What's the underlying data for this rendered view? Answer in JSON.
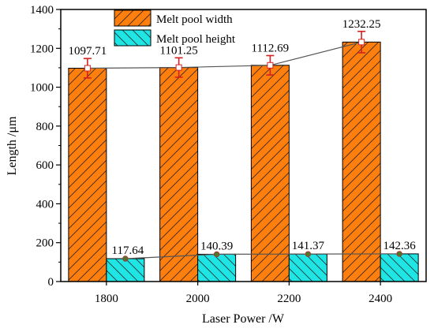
{
  "chart_data": {
    "type": "bar",
    "title": "",
    "xlabel": "Laser Power /W",
    "ylabel": "Length /μm",
    "categories": [
      "1800",
      "2000",
      "2200",
      "2400"
    ],
    "ylim": [
      0,
      1400
    ],
    "yticks": [
      0,
      200,
      400,
      600,
      800,
      1000,
      1200,
      1400
    ],
    "grid": false,
    "legend_position": "top-center",
    "series": [
      {
        "name": "Melt pool width",
        "values": [
          1097.71,
          1101.25,
          1112.69,
          1232.25
        ],
        "labels": [
          "1097.71",
          "1101.25",
          "1112.69",
          "1232.25"
        ],
        "error": [
          50,
          50,
          50,
          55
        ],
        "color": "#FF7F0E",
        "hatch": "diagonal-forward",
        "trend_line": true
      },
      {
        "name": "Melt pool height",
        "values": [
          117.64,
          140.39,
          141.37,
          142.36
        ],
        "labels": [
          "117.64",
          "140.39",
          "141.37",
          "142.36"
        ],
        "color": "#20E5E5",
        "hatch": "diagonal-backward",
        "trend_line": true
      }
    ]
  }
}
